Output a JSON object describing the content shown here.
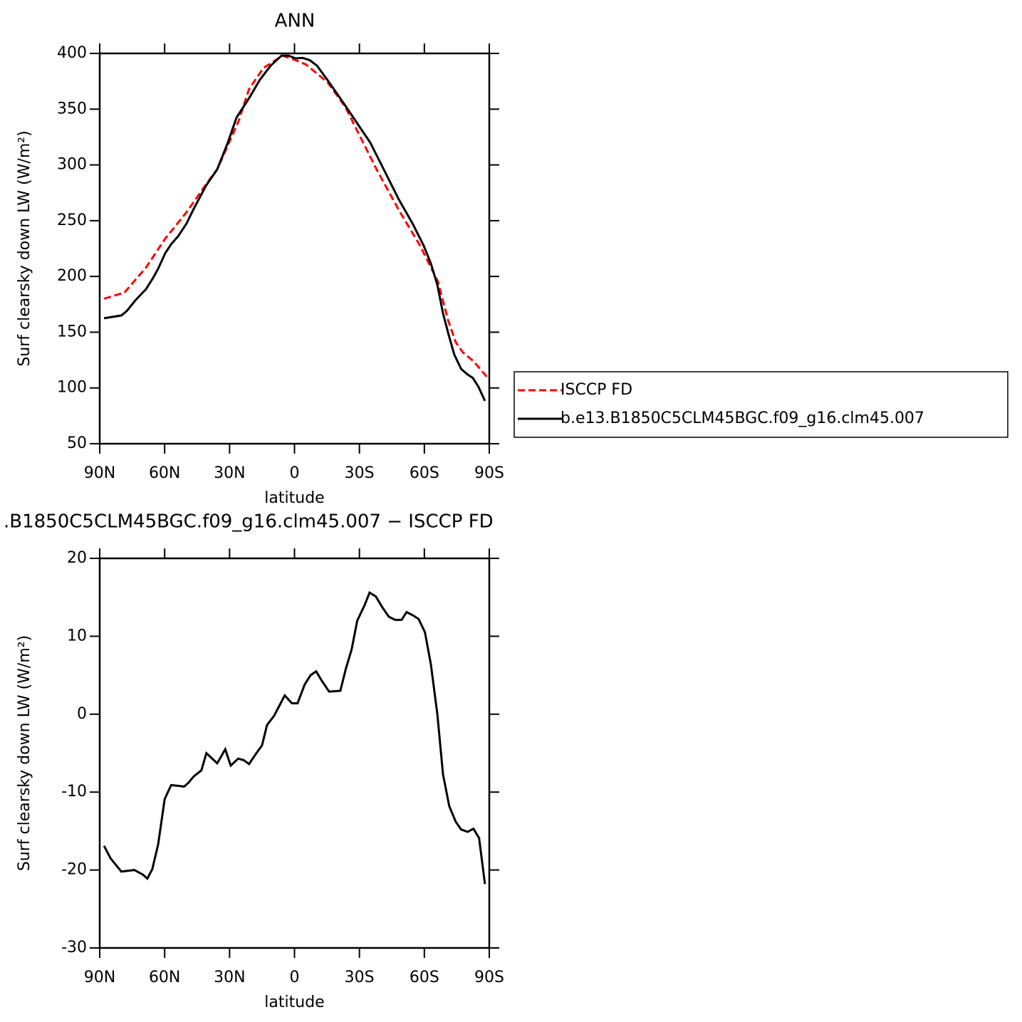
{
  "chart_data": [
    {
      "type": "line",
      "title": "ANN",
      "xlabel": "latitude",
      "ylabel": "Surf clearsky down LW (W/m²)",
      "xlim": [
        90,
        -90
      ],
      "xticks": [
        {
          "value": 90,
          "label": "90N"
        },
        {
          "value": 60,
          "label": "60N"
        },
        {
          "value": 30,
          "label": "30N"
        },
        0,
        {
          "value": -30,
          "label": "30S"
        },
        {
          "value": -60,
          "label": "60S"
        },
        {
          "value": -90,
          "label": "90S"
        }
      ],
      "ylim": [
        50,
        400
      ],
      "yticks": [
        50,
        100,
        150,
        200,
        250,
        300,
        350,
        400
      ],
      "legend": "right",
      "series": [
        {
          "name": "ISCCP FD",
          "color": "#ff0000",
          "style": "dashed",
          "x": [
            88,
            78.5,
            68.6,
            59.7,
            49.9,
            40.7,
            35.7,
            25.9,
            21,
            14.3,
            5.5,
            -0.5,
            -5.4,
            -15.3,
            -23.5,
            -30,
            -38.3,
            -48.2,
            -58,
            -66.2,
            -71,
            -74.5,
            -77.8,
            -82.7,
            -89.3
          ],
          "values": [
            180,
            185.6,
            208,
            234,
            257.6,
            283,
            296,
            339,
            368,
            387,
            398,
            394,
            390,
            374,
            352,
            326.6,
            294.6,
            259.5,
            227.6,
            195.7,
            160.5,
            141,
            131.8,
            124,
            109
          ]
        },
        {
          "name": "b.e13.B1850C5CLM45BGC.f09_g16.clm45.007",
          "color": "#000000",
          "style": "solid",
          "x": [
            88,
            80,
            77.5,
            73.6,
            68.6,
            65.3,
            63,
            59.7,
            57,
            53.8,
            49.9,
            47,
            44,
            40.7,
            35.7,
            30.8,
            26.8,
            21,
            16,
            11,
            6,
            2.8,
            -0.5,
            -3.8,
            -7,
            -10.4,
            -15.3,
            -21.8,
            -28.4,
            -35,
            -41.6,
            -48.2,
            -54.7,
            -59.7,
            -63,
            -66,
            -68.6,
            -71.2,
            -73.8,
            -77,
            -80,
            -82.4,
            -85,
            -88
          ],
          "values": [
            162.5,
            165,
            169,
            178.4,
            188.6,
            198.8,
            207,
            221,
            228.9,
            236,
            247.4,
            259,
            270,
            281.9,
            296,
            320,
            342.5,
            359.8,
            376.4,
            389,
            398,
            398,
            395.5,
            396,
            394,
            389,
            376,
            358,
            339,
            320,
            294.6,
            269,
            247,
            227.6,
            211.6,
            192.5,
            167,
            147.8,
            130,
            117,
            112,
            109,
            101,
            88.4
          ]
        }
      ]
    },
    {
      "type": "line",
      "title": ".B1850C5CLM45BGC.f09_g16.clm45.007 − ISCCP FD",
      "xlabel": "latitude",
      "ylabel": "Surf clearsky down LW (W/m²)",
      "xlim": [
        90,
        -90
      ],
      "xticks": [
        {
          "value": 90,
          "label": "90N"
        },
        {
          "value": 60,
          "label": "60N"
        },
        {
          "value": 30,
          "label": "30N"
        },
        0,
        {
          "value": -30,
          "label": "30S"
        },
        {
          "value": -60,
          "label": "60S"
        },
        {
          "value": -90,
          "label": "90S"
        }
      ],
      "ylim": [
        -30,
        20
      ],
      "yticks": [
        -30,
        -20,
        -10,
        0,
        10,
        20
      ],
      "series": [
        {
          "color": "#000000",
          "style": "solid",
          "x": [
            88,
            85,
            80,
            74,
            70,
            68,
            65.7,
            63,
            60,
            57,
            53.8,
            51,
            49,
            46.6,
            43,
            40.7,
            35.7,
            32,
            29.5,
            26,
            23.5,
            21,
            17.6,
            15,
            12.7,
            9.4,
            4.5,
            1.2,
            -1.4,
            -4.7,
            -7.4,
            -10,
            -12.6,
            -16,
            -21.2,
            -23.8,
            -26.4,
            -29,
            -32.4,
            -34.7,
            -37.6,
            -40.6,
            -43.6,
            -46.5,
            -49.5,
            -51.8,
            -54.7,
            -57.4,
            -60.3,
            -63,
            -66,
            -68.6,
            -71.5,
            -74.5,
            -77,
            -80,
            -82.7,
            -85.3,
            -88
          ],
          "values": [
            -16.9,
            -18.5,
            -20.2,
            -20,
            -20.6,
            -21.1,
            -19.9,
            -16.7,
            -10.9,
            -9.1,
            -9.2,
            -9.3,
            -8.8,
            -8,
            -7.2,
            -5,
            -6.3,
            -4.5,
            -6.6,
            -5.7,
            -5.9,
            -6.4,
            -5,
            -4,
            -1.4,
            -0.2,
            2.4,
            1.4,
            1.4,
            3.8,
            5,
            5.5,
            4.3,
            2.9,
            3,
            5.9,
            8.3,
            12,
            14,
            15.6,
            15.1,
            13.7,
            12.5,
            12.1,
            12.1,
            13.1,
            12.7,
            12.2,
            10.5,
            6.4,
            0,
            -7.7,
            -11.8,
            -13.8,
            -14.8,
            -15.1,
            -14.7,
            -15.9,
            -21.8
          ]
        }
      ]
    }
  ]
}
